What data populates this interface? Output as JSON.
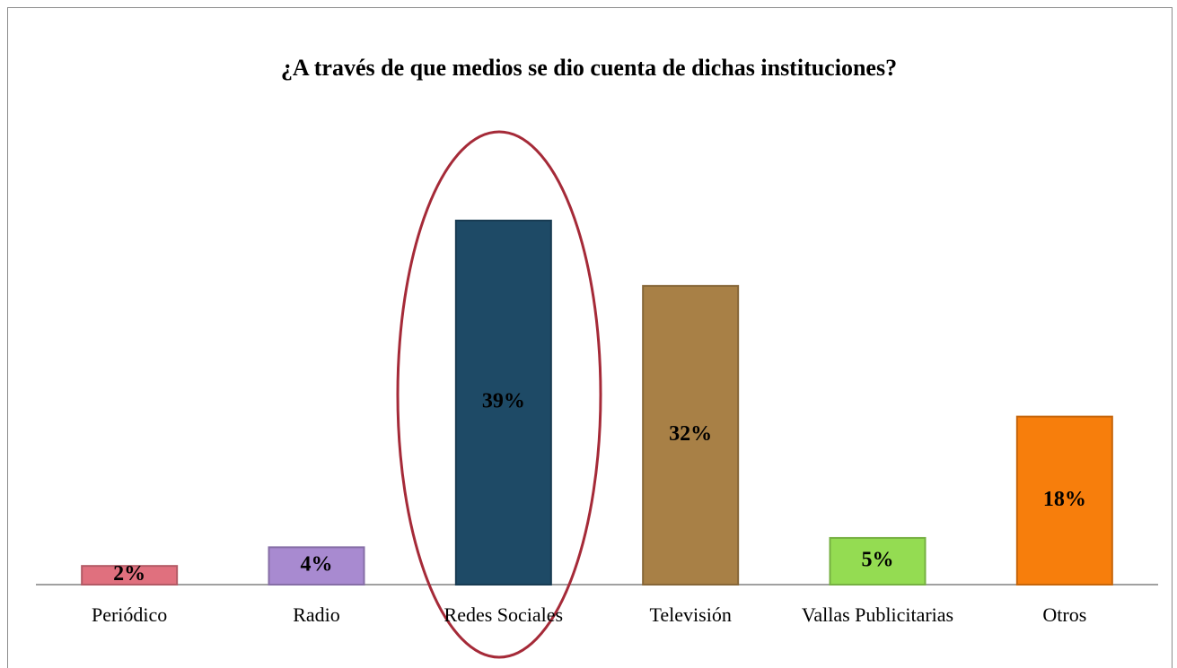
{
  "chart_data": {
    "type": "bar",
    "title": "¿A través de que medios se dio cuenta de dichas instituciones?",
    "categories": [
      "Periódico",
      "Radio",
      "Redes Sociales",
      "Televisión",
      "Vallas Publicitarias",
      "Otros"
    ],
    "values": [
      2,
      4,
      39,
      32,
      5,
      18
    ],
    "value_labels": [
      "2%",
      "4%",
      "39%",
      "32%",
      "5%",
      "18%"
    ],
    "colors": [
      "#e0707e",
      "#a88ad0",
      "#1e4a66",
      "#a88046",
      "#94dc52",
      "#f77e0c"
    ]
  }
}
